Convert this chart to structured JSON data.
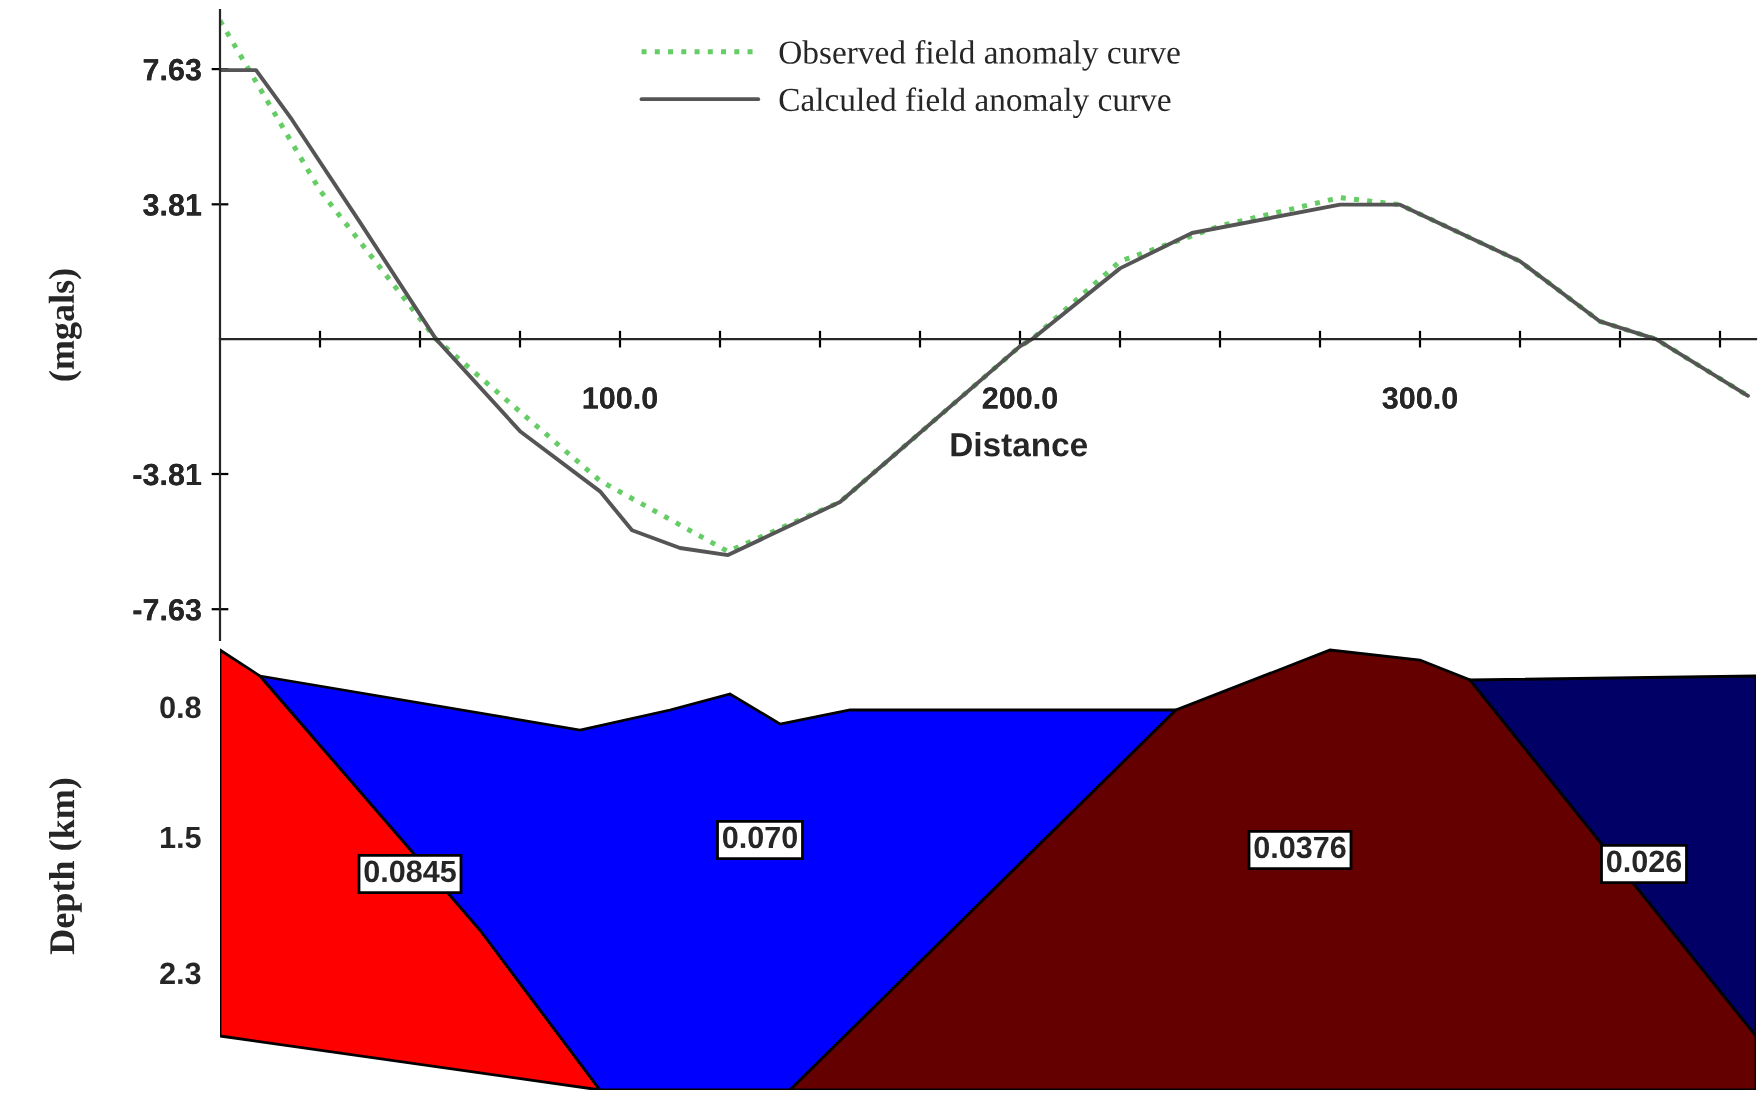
{
  "chart_data": [
    {
      "type": "line",
      "xlabel": "Distance",
      "ylabel": "(mgals)",
      "xlim": [
        0,
        384
      ],
      "ylim": [
        -8.5,
        9.3
      ],
      "xticks": [
        {
          "value": 25,
          "label": null
        },
        {
          "value": 50,
          "label": null
        },
        {
          "value": 75,
          "label": null
        },
        {
          "value": 100,
          "label": "100.0"
        },
        {
          "value": 125,
          "label": null
        },
        {
          "value": 150,
          "label": null
        },
        {
          "value": 175,
          "label": null
        },
        {
          "value": 200,
          "label": "200.0"
        },
        {
          "value": 225,
          "label": null
        },
        {
          "value": 250,
          "label": null
        },
        {
          "value": 275,
          "label": null
        },
        {
          "value": 300,
          "label": "300.0"
        },
        {
          "value": 325,
          "label": null
        },
        {
          "value": 350,
          "label": null
        },
        {
          "value": 375,
          "label": null
        }
      ],
      "yticks": [
        -7.63,
        -3.81,
        3.81,
        7.63
      ],
      "legend": "top",
      "grid": false,
      "series": [
        {
          "name": "Observed field anomaly curve",
          "color": "#66cc66",
          "line_style": "dotted",
          "x": [
            0,
            25,
            54,
            95,
            127,
            155,
            200,
            203,
            225,
            250,
            280,
            295,
            325,
            345,
            359,
            382
          ],
          "values": [
            9.0,
            4.2,
            0,
            -4.0,
            -6.0,
            -4.6,
            -0.2,
            0,
            2.2,
            3.2,
            4.0,
            3.8,
            2.2,
            0.5,
            0,
            -1.6
          ]
        },
        {
          "name": "Calculed field anomaly curve",
          "color": "#555555",
          "line_style": "solid",
          "x": [
            0,
            9,
            18,
            35,
            54,
            75,
            95,
            103,
            115,
            127,
            155,
            200,
            203,
            225,
            243,
            280,
            295,
            325,
            345,
            359,
            382
          ],
          "values": [
            7.6,
            7.6,
            6.2,
            3.3,
            0,
            -2.6,
            -4.3,
            -5.4,
            -5.9,
            -6.1,
            -4.6,
            -0.2,
            0,
            2.0,
            3.0,
            3.8,
            3.8,
            2.2,
            0.5,
            0,
            -1.6
          ]
        }
      ]
    },
    {
      "type": "other",
      "ylabel": "Depth (km)",
      "annotations": [
        "0.8",
        "1.5",
        "2.3",
        "0.0845",
        "0.070",
        "0.0376",
        "0.026"
      ],
      "colors": [
        "#ff0000",
        "#0000ff",
        "#640000",
        "#000066"
      ]
    }
  ]
}
